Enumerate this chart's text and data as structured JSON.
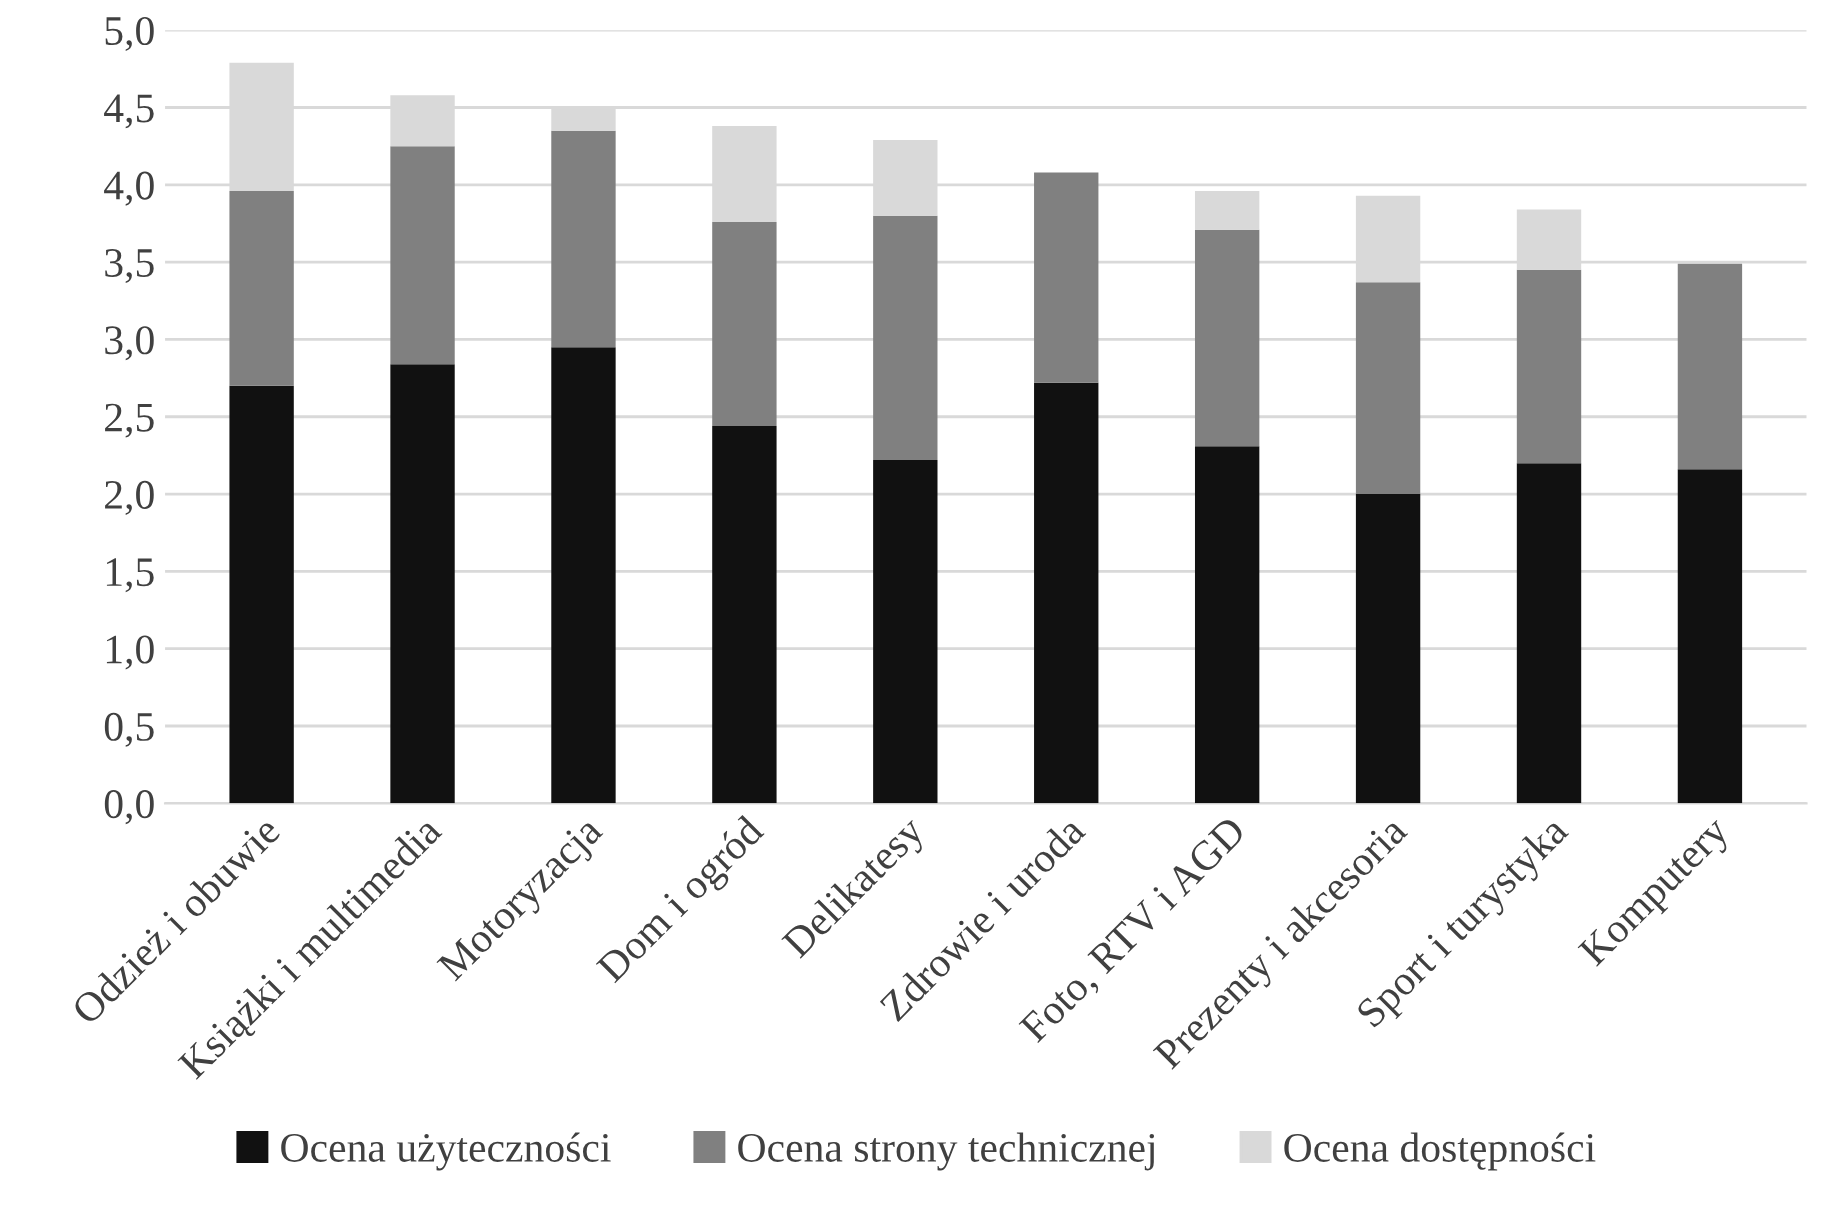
{
  "chart_data": {
    "type": "bar",
    "stacked": true,
    "categories": [
      "Odzież i obuwie",
      "Książki i multimedia",
      "Motoryzacja",
      "Dom i ogród",
      "Delikatesy",
      "Zdrowie i uroda",
      "Foto, RTV i AGD",
      "Prezenty i akcesoria",
      "Sport i turystyka",
      "Komputery"
    ],
    "series": [
      {
        "name": "Ocena użyteczności",
        "color": "#111111",
        "values": [
          2.7,
          2.84,
          2.95,
          2.44,
          2.22,
          2.72,
          2.31,
          2.0,
          2.2,
          2.16
        ]
      },
      {
        "name": "Ocena strony technicznej",
        "color": "#808080",
        "values": [
          1.26,
          1.41,
          1.4,
          1.32,
          1.58,
          1.36,
          1.4,
          1.37,
          1.25,
          1.33
        ]
      },
      {
        "name": "Ocena dostępności",
        "color": "#d9d9d9",
        "values": [
          0.83,
          0.33,
          0.14,
          0.62,
          0.49,
          null,
          0.25,
          0.56,
          0.39,
          null
        ]
      }
    ],
    "ylim": [
      0,
      5
    ],
    "yticks": [
      {
        "value": 0,
        "label": "0,0"
      },
      {
        "value": 0.5,
        "label": "0,5"
      },
      {
        "value": 1,
        "label": "1,0"
      },
      {
        "value": 1.5,
        "label": "1,5"
      },
      {
        "value": 2,
        "label": "2,0"
      },
      {
        "value": 2.5,
        "label": "2,5"
      },
      {
        "value": 3,
        "label": "3,0"
      },
      {
        "value": 3.5,
        "label": "3,5"
      },
      {
        "value": 4,
        "label": "4,0"
      },
      {
        "value": 4.5,
        "label": "4,5"
      },
      {
        "value": 5,
        "label": "5,0"
      }
    ],
    "grid": "y",
    "legend": "bottom"
  }
}
